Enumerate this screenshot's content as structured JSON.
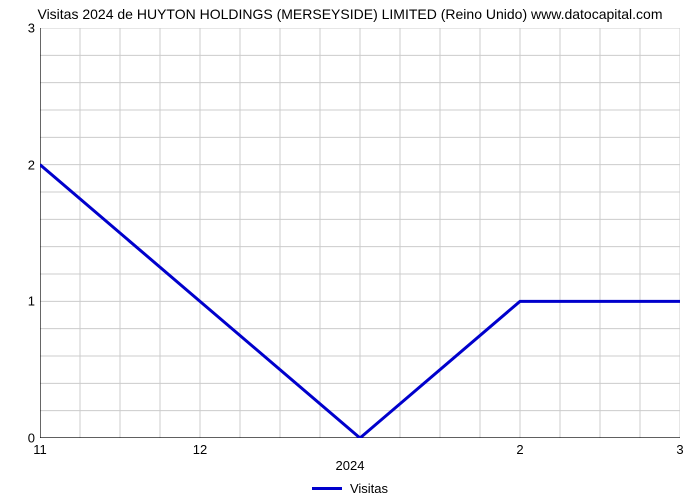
{
  "chart": {
    "type": "line",
    "title": "Visitas 2024 de HUYTON HOLDINGS (MERSEYSIDE) LIMITED (Reino Unido) www.datocapital.com",
    "title_fontsize": 14,
    "xlabel": "2024",
    "background_color": "#ffffff",
    "grid_color": "#cccccc",
    "axis_color": "#000000",
    "series": {
      "label": "Visitas",
      "color": "#0000cc",
      "line_width": 3,
      "x": [
        11,
        12,
        1,
        2,
        3
      ],
      "y": [
        2,
        1,
        0,
        1,
        1
      ]
    },
    "xlim": [
      11,
      3
    ],
    "ylim": [
      0,
      3
    ],
    "xticks": [
      {
        "label": "11",
        "pos": 0.0
      },
      {
        "label": "12",
        "pos": 0.25
      },
      {
        "label": "2",
        "pos": 0.75
      },
      {
        "label": "3",
        "pos": 1.0
      }
    ],
    "yticks": [
      {
        "label": "0",
        "pos": 0.0
      },
      {
        "label": "1",
        "pos": 0.333333
      },
      {
        "label": "2",
        "pos": 0.666667
      },
      {
        "label": "3",
        "pos": 1.0
      }
    ],
    "grid_v_positions": [
      0.0,
      0.0625,
      0.125,
      0.1875,
      0.25,
      0.3125,
      0.375,
      0.4375,
      0.5,
      0.5625,
      0.625,
      0.6875,
      0.75,
      0.8125,
      0.875,
      0.9375,
      1.0
    ],
    "grid_h_positions": [
      0.0,
      0.0667,
      0.1333,
      0.2,
      0.2667,
      0.3333,
      0.4,
      0.4667,
      0.5333,
      0.6,
      0.6667,
      0.7333,
      0.8,
      0.8667,
      0.9333,
      1.0
    ]
  }
}
